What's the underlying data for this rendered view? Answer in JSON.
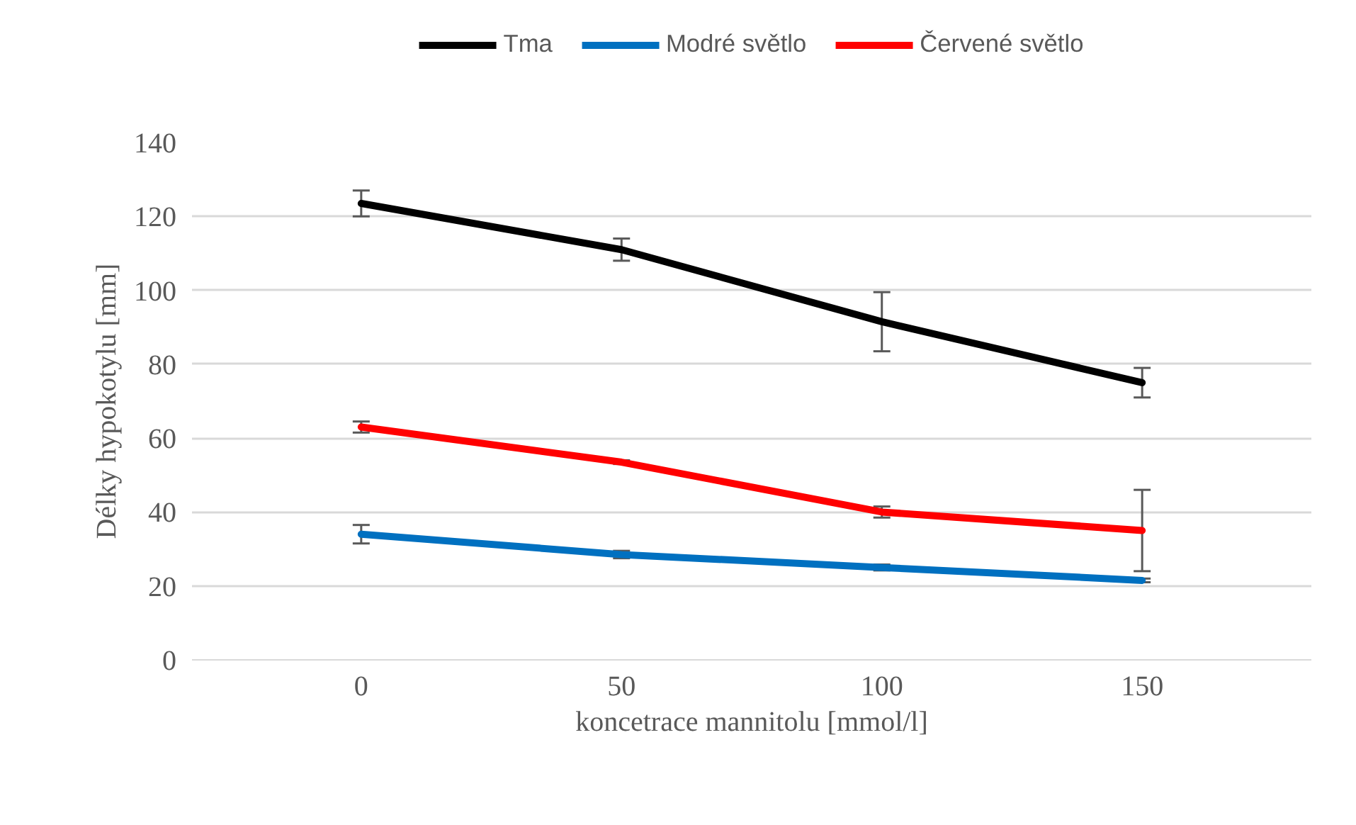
{
  "chart_data": {
    "type": "line",
    "xlabel": "koncetrace mannitolu [mmol/l]",
    "ylabel": "Délky hypokotylu [mm]",
    "categories": [
      "0",
      "50",
      "100",
      "150"
    ],
    "series": [
      {
        "name": "Tma",
        "color": "#000000",
        "values": [
          123.5,
          111,
          91.5,
          75
        ],
        "errors": [
          3.5,
          3,
          8,
          4
        ]
      },
      {
        "name": "Modré světlo",
        "color": "#0070c0",
        "values": [
          34,
          28.5,
          25,
          21.5
        ],
        "errors": [
          2.5,
          1,
          0.8,
          0.5
        ]
      },
      {
        "name": "Červené světlo",
        "color": "#ff0000",
        "values": [
          63,
          53.5,
          40,
          35
        ],
        "errors": [
          1.5,
          0.5,
          1.5,
          11
        ]
      }
    ],
    "ylim": [
      0,
      140
    ],
    "yticks": [
      0,
      20,
      40,
      60,
      80,
      100,
      120,
      140
    ],
    "grid": "y",
    "legend": "top",
    "marker": "none",
    "line_style": "solid"
  }
}
